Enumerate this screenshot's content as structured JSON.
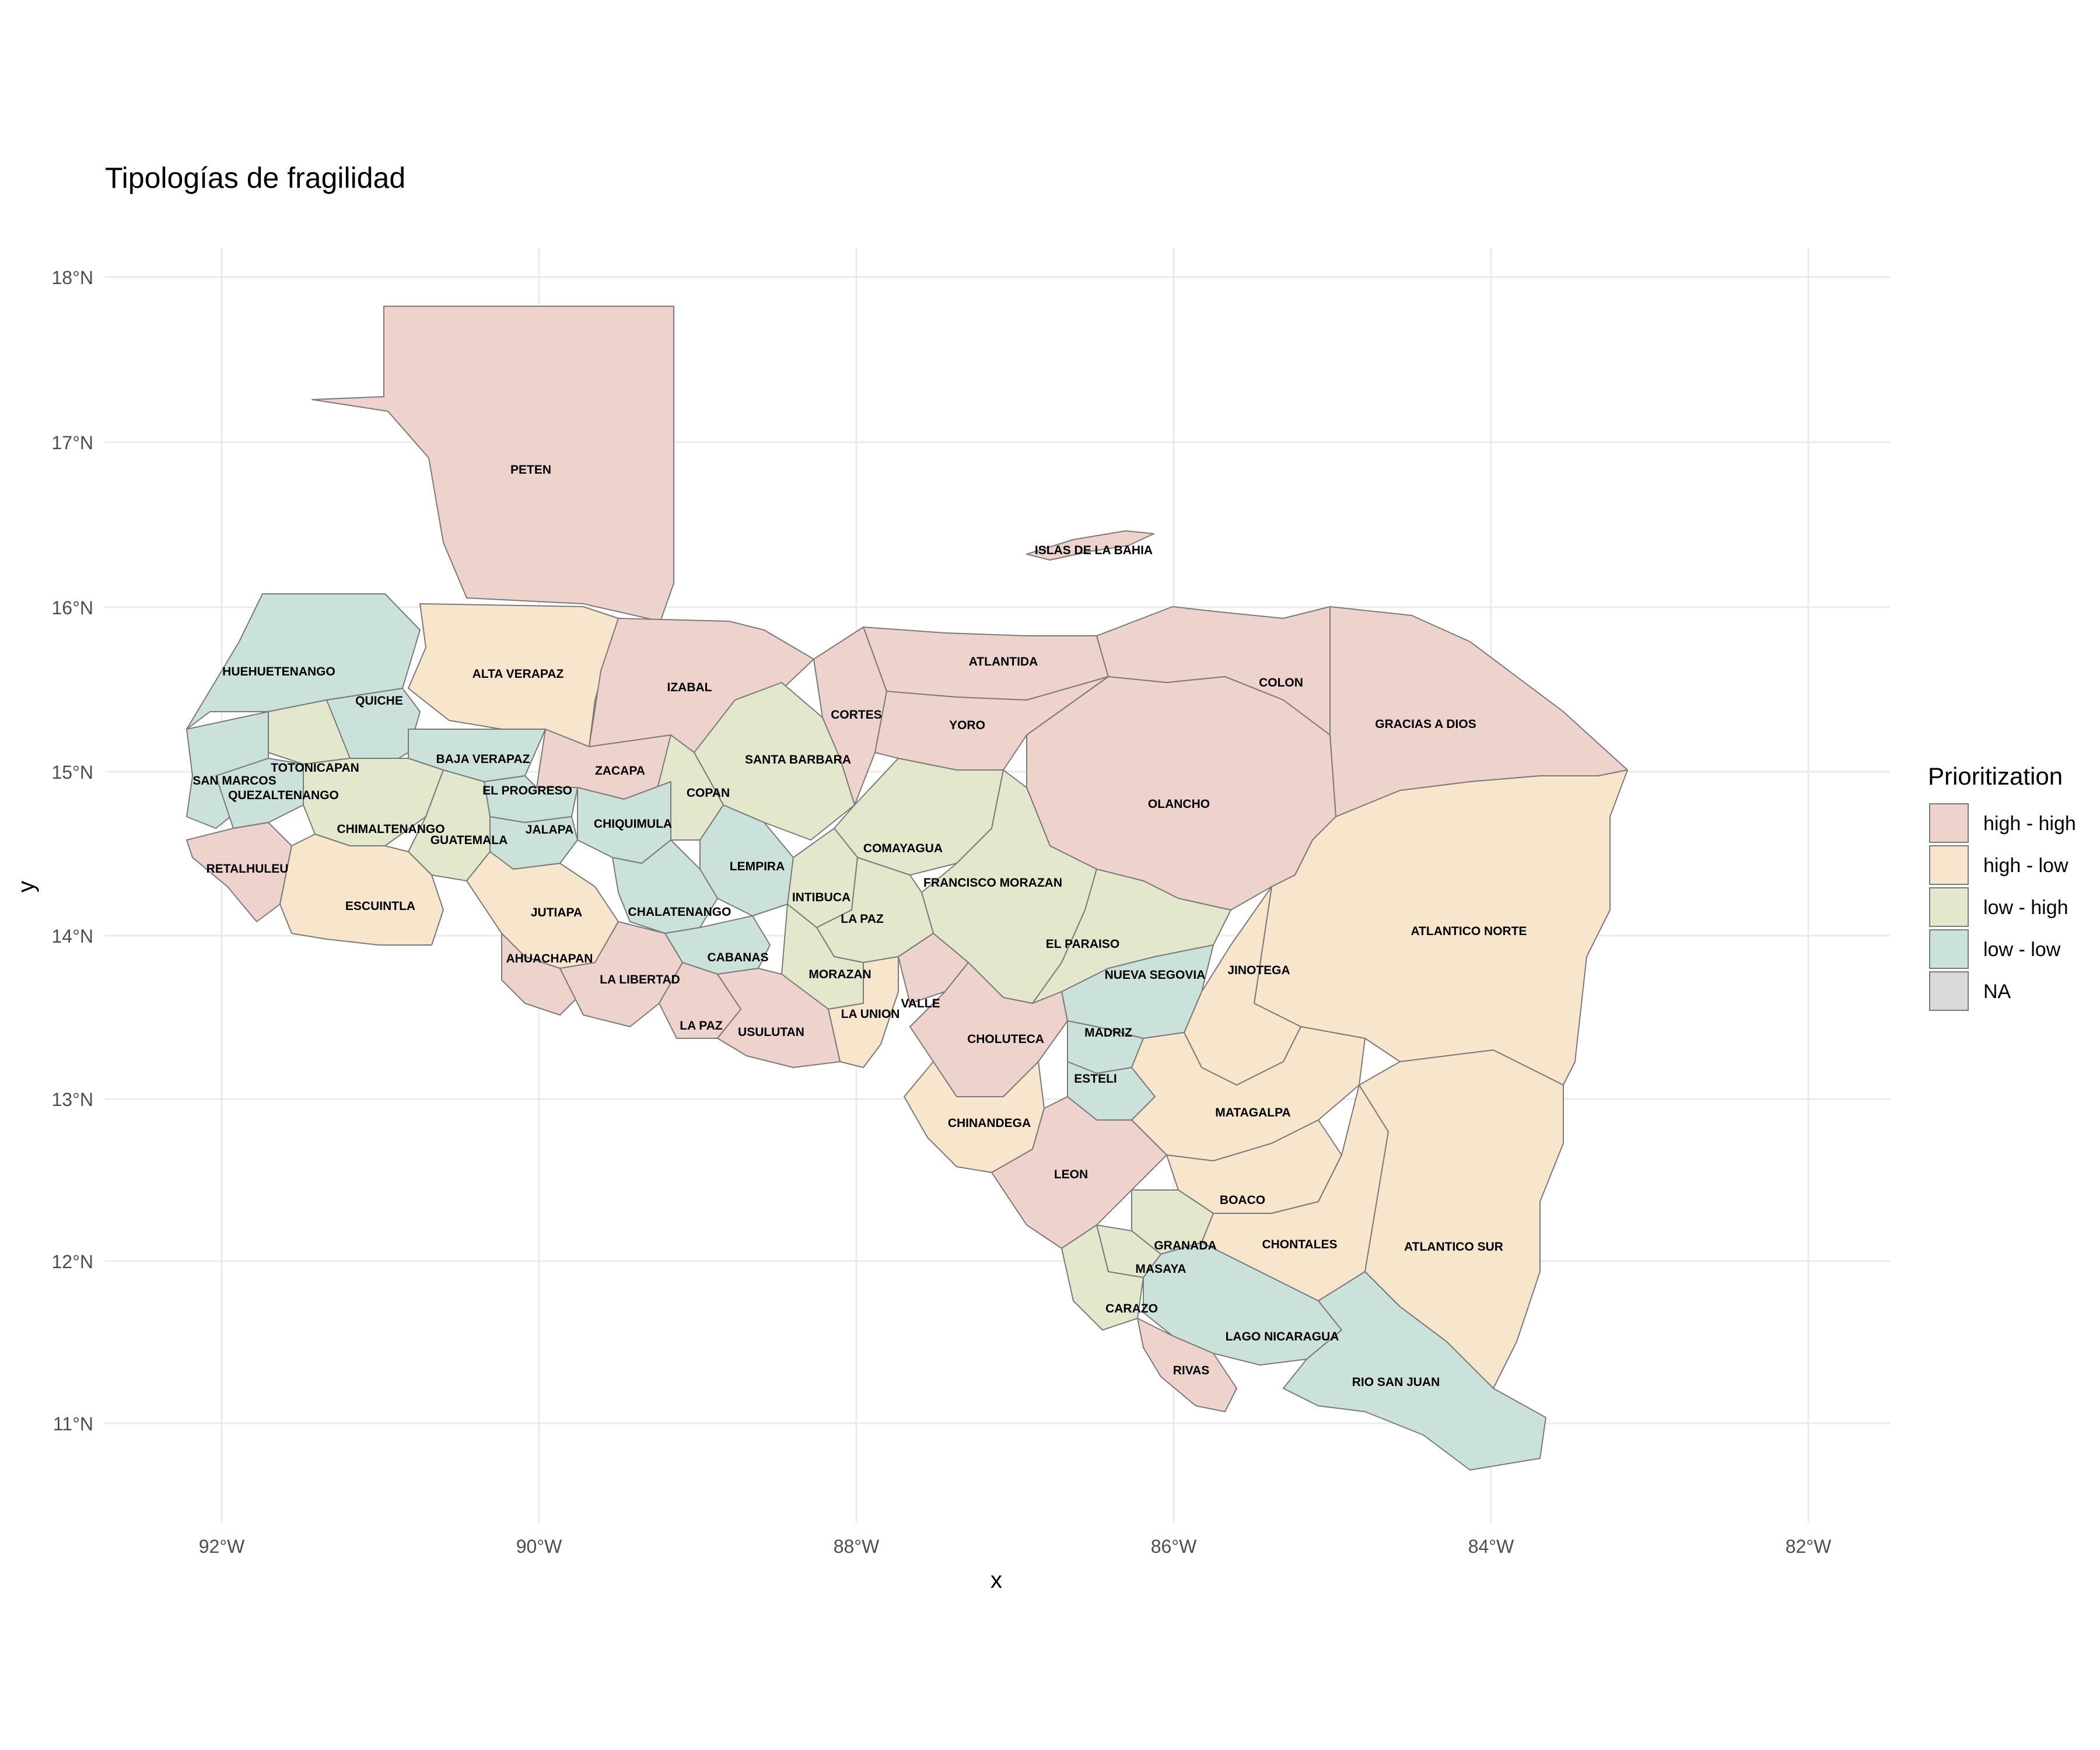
{
  "title": "Tipologías de fragilidad",
  "axes": {
    "x_label": "x",
    "y_label": "y",
    "x_ticks": [
      "92°W",
      "90°W",
      "88°W",
      "86°W",
      "84°W",
      "82°W"
    ],
    "y_ticks": [
      "18°N",
      "17°N",
      "16°N",
      "15°N",
      "14°N",
      "13°N",
      "12°N",
      "11°N"
    ]
  },
  "legend": {
    "title": "Prioritization",
    "items": [
      {
        "key": "hh",
        "label": "high - high",
        "color": "#eed3cd"
      },
      {
        "key": "hl",
        "label": "high - low",
        "color": "#f7e6cb"
      },
      {
        "key": "lh",
        "label": "low - high",
        "color": "#e3e8cd"
      },
      {
        "key": "ll",
        "label": "low - low",
        "color": "#cbe2db"
      },
      {
        "key": "na",
        "label": "NA",
        "color": "#d9d9d9"
      }
    ]
  },
  "regions": [
    {
      "name": "PETEN",
      "category": "hh"
    },
    {
      "name": "ISLAS DE LA BAHIA",
      "category": "hh"
    },
    {
      "name": "HUEHUETENANGO",
      "category": "ll"
    },
    {
      "name": "ALTA VERAPAZ",
      "category": "hl"
    },
    {
      "name": "IZABAL",
      "category": "hh"
    },
    {
      "name": "ATLANTIDA",
      "category": "hh"
    },
    {
      "name": "COLON",
      "category": "hh"
    },
    {
      "name": "QUICHE",
      "category": "ll"
    },
    {
      "name": "CORTES",
      "category": "hh"
    },
    {
      "name": "YORO",
      "category": "hh"
    },
    {
      "name": "GRACIAS A DIOS",
      "category": "hh"
    },
    {
      "name": "BAJA VERAPAZ",
      "category": "ll"
    },
    {
      "name": "SANTA BARBARA",
      "category": "lh"
    },
    {
      "name": "TOTONICAPAN",
      "category": "lh"
    },
    {
      "name": "ZACAPA",
      "category": "hh"
    },
    {
      "name": "SAN MARCOS",
      "category": "ll"
    },
    {
      "name": "EL PROGRESO",
      "category": "ll"
    },
    {
      "name": "COPAN",
      "category": "lh"
    },
    {
      "name": "QUEZALTENANGO",
      "category": "ll"
    },
    {
      "name": "OLANCHO",
      "category": "hh"
    },
    {
      "name": "CHIQUIMULA",
      "category": "ll"
    },
    {
      "name": "CHIMALTENANGO",
      "category": "lh"
    },
    {
      "name": "JALAPA",
      "category": "ll"
    },
    {
      "name": "GUATEMALA",
      "category": "lh"
    },
    {
      "name": "COMAYAGUA",
      "category": "lh"
    },
    {
      "name": "LEMPIRA",
      "category": "ll"
    },
    {
      "name": "RETALHULEU",
      "category": "hh"
    },
    {
      "name": "FRANCISCO MORAZAN",
      "category": "lh"
    },
    {
      "name": "INTIBUCA",
      "category": "lh"
    },
    {
      "name": "ESCUINTLA",
      "category": "hl"
    },
    {
      "name": "JUTIAPA",
      "category": "hl"
    },
    {
      "name": "CHALATENANGO",
      "category": "ll"
    },
    {
      "name": "LA PAZ",
      "category": "lh"
    },
    {
      "name": "ATLANTICO NORTE",
      "category": "hl"
    },
    {
      "name": "EL PARAISO",
      "category": "lh"
    },
    {
      "name": "AHUACHAPAN",
      "category": "hh"
    },
    {
      "name": "CABANAS",
      "category": "ll"
    },
    {
      "name": "JINOTEGA",
      "category": "hl"
    },
    {
      "name": "MORAZAN",
      "category": "lh"
    },
    {
      "name": "NUEVA SEGOVIA",
      "category": "ll"
    },
    {
      "name": "LA LIBERTAD",
      "category": "hh"
    },
    {
      "name": "LA UNION",
      "category": "hl"
    },
    {
      "name": "VALLE",
      "category": "hh"
    },
    {
      "name": "LA PAZ",
      "category": "hh"
    },
    {
      "name": "USULUTAN",
      "category": "hh"
    },
    {
      "name": "CHOLUTECA",
      "category": "hh"
    },
    {
      "name": "MADRIZ",
      "category": "ll"
    },
    {
      "name": "ESTELI",
      "category": "ll"
    },
    {
      "name": "MATAGALPA",
      "category": "hl"
    },
    {
      "name": "CHINANDEGA",
      "category": "hl"
    },
    {
      "name": "LEON",
      "category": "hh"
    },
    {
      "name": "BOACO",
      "category": "hl"
    },
    {
      "name": "GRANADA",
      "category": "lh"
    },
    {
      "name": "CHONTALES",
      "category": "hl"
    },
    {
      "name": "ATLANTICO SUR",
      "category": "hl"
    },
    {
      "name": "MASAYA",
      "category": "lh"
    },
    {
      "name": "CARAZO",
      "category": "lh"
    },
    {
      "name": "LAGO NICARAGUA",
      "category": "ll"
    },
    {
      "name": "RIO SAN JUAN",
      "category": "ll"
    },
    {
      "name": "RIVAS",
      "category": "hh"
    }
  ]
}
